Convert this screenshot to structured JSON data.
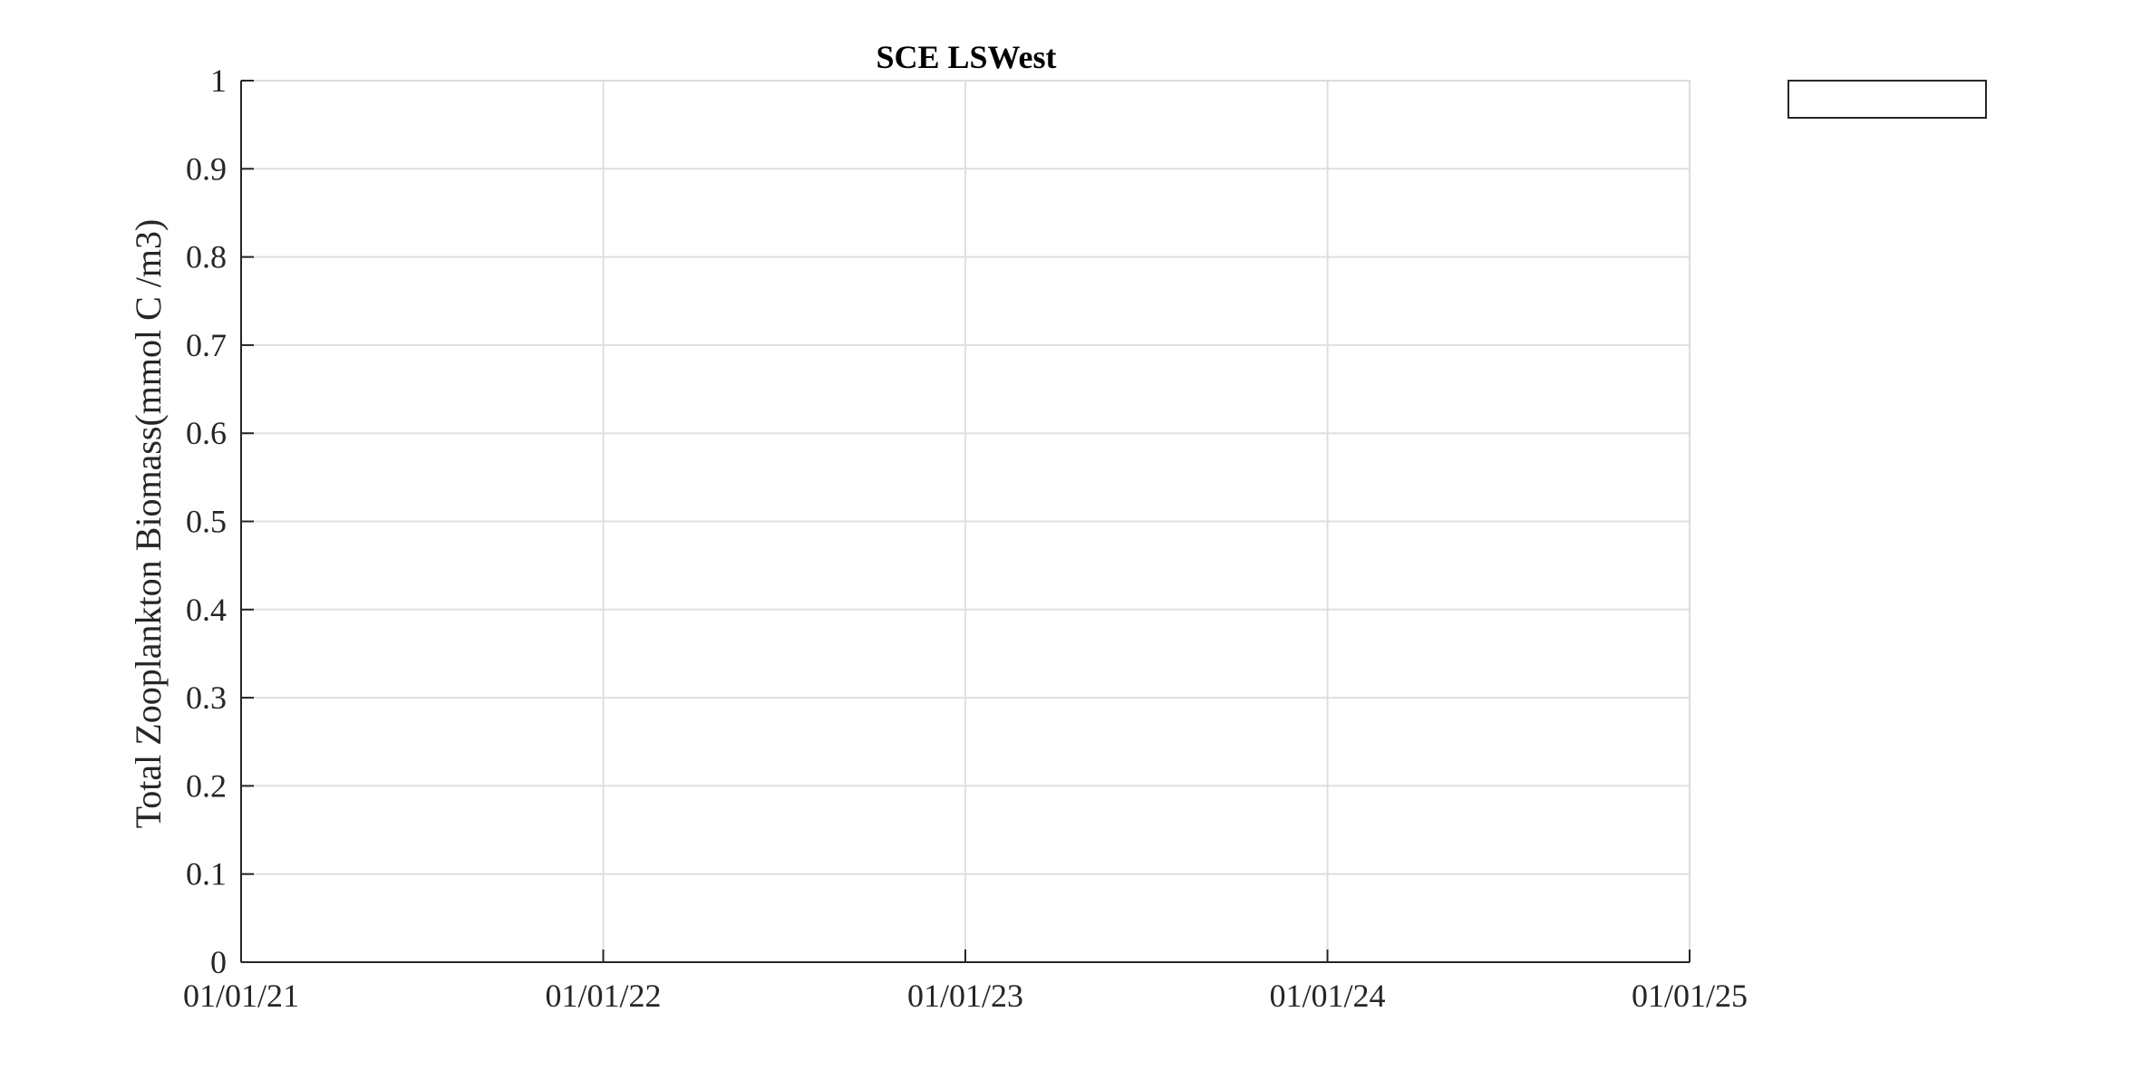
{
  "chart_data": {
    "type": "line",
    "title": "SCE LSWest",
    "xlabel": "",
    "ylabel": "Total Zooplankton Biomass(mmol C /m3)",
    "x_tick_labels": [
      "01/01/21",
      "01/01/22",
      "01/01/23",
      "01/01/24",
      "01/01/25"
    ],
    "y_tick_labels": [
      "0",
      "0.1",
      "0.2",
      "0.3",
      "0.4",
      "0.5",
      "0.6",
      "0.7",
      "0.8",
      "0.9",
      "1"
    ],
    "xlim": [
      "01/01/21",
      "01/01/25"
    ],
    "ylim": [
      0,
      1
    ],
    "grid": true,
    "legend_placement": "outside-top-right",
    "legend_entries": [],
    "series": []
  },
  "colors": {
    "axis": "#262626",
    "grid": "#dfdfdf",
    "background": "#ffffff"
  }
}
